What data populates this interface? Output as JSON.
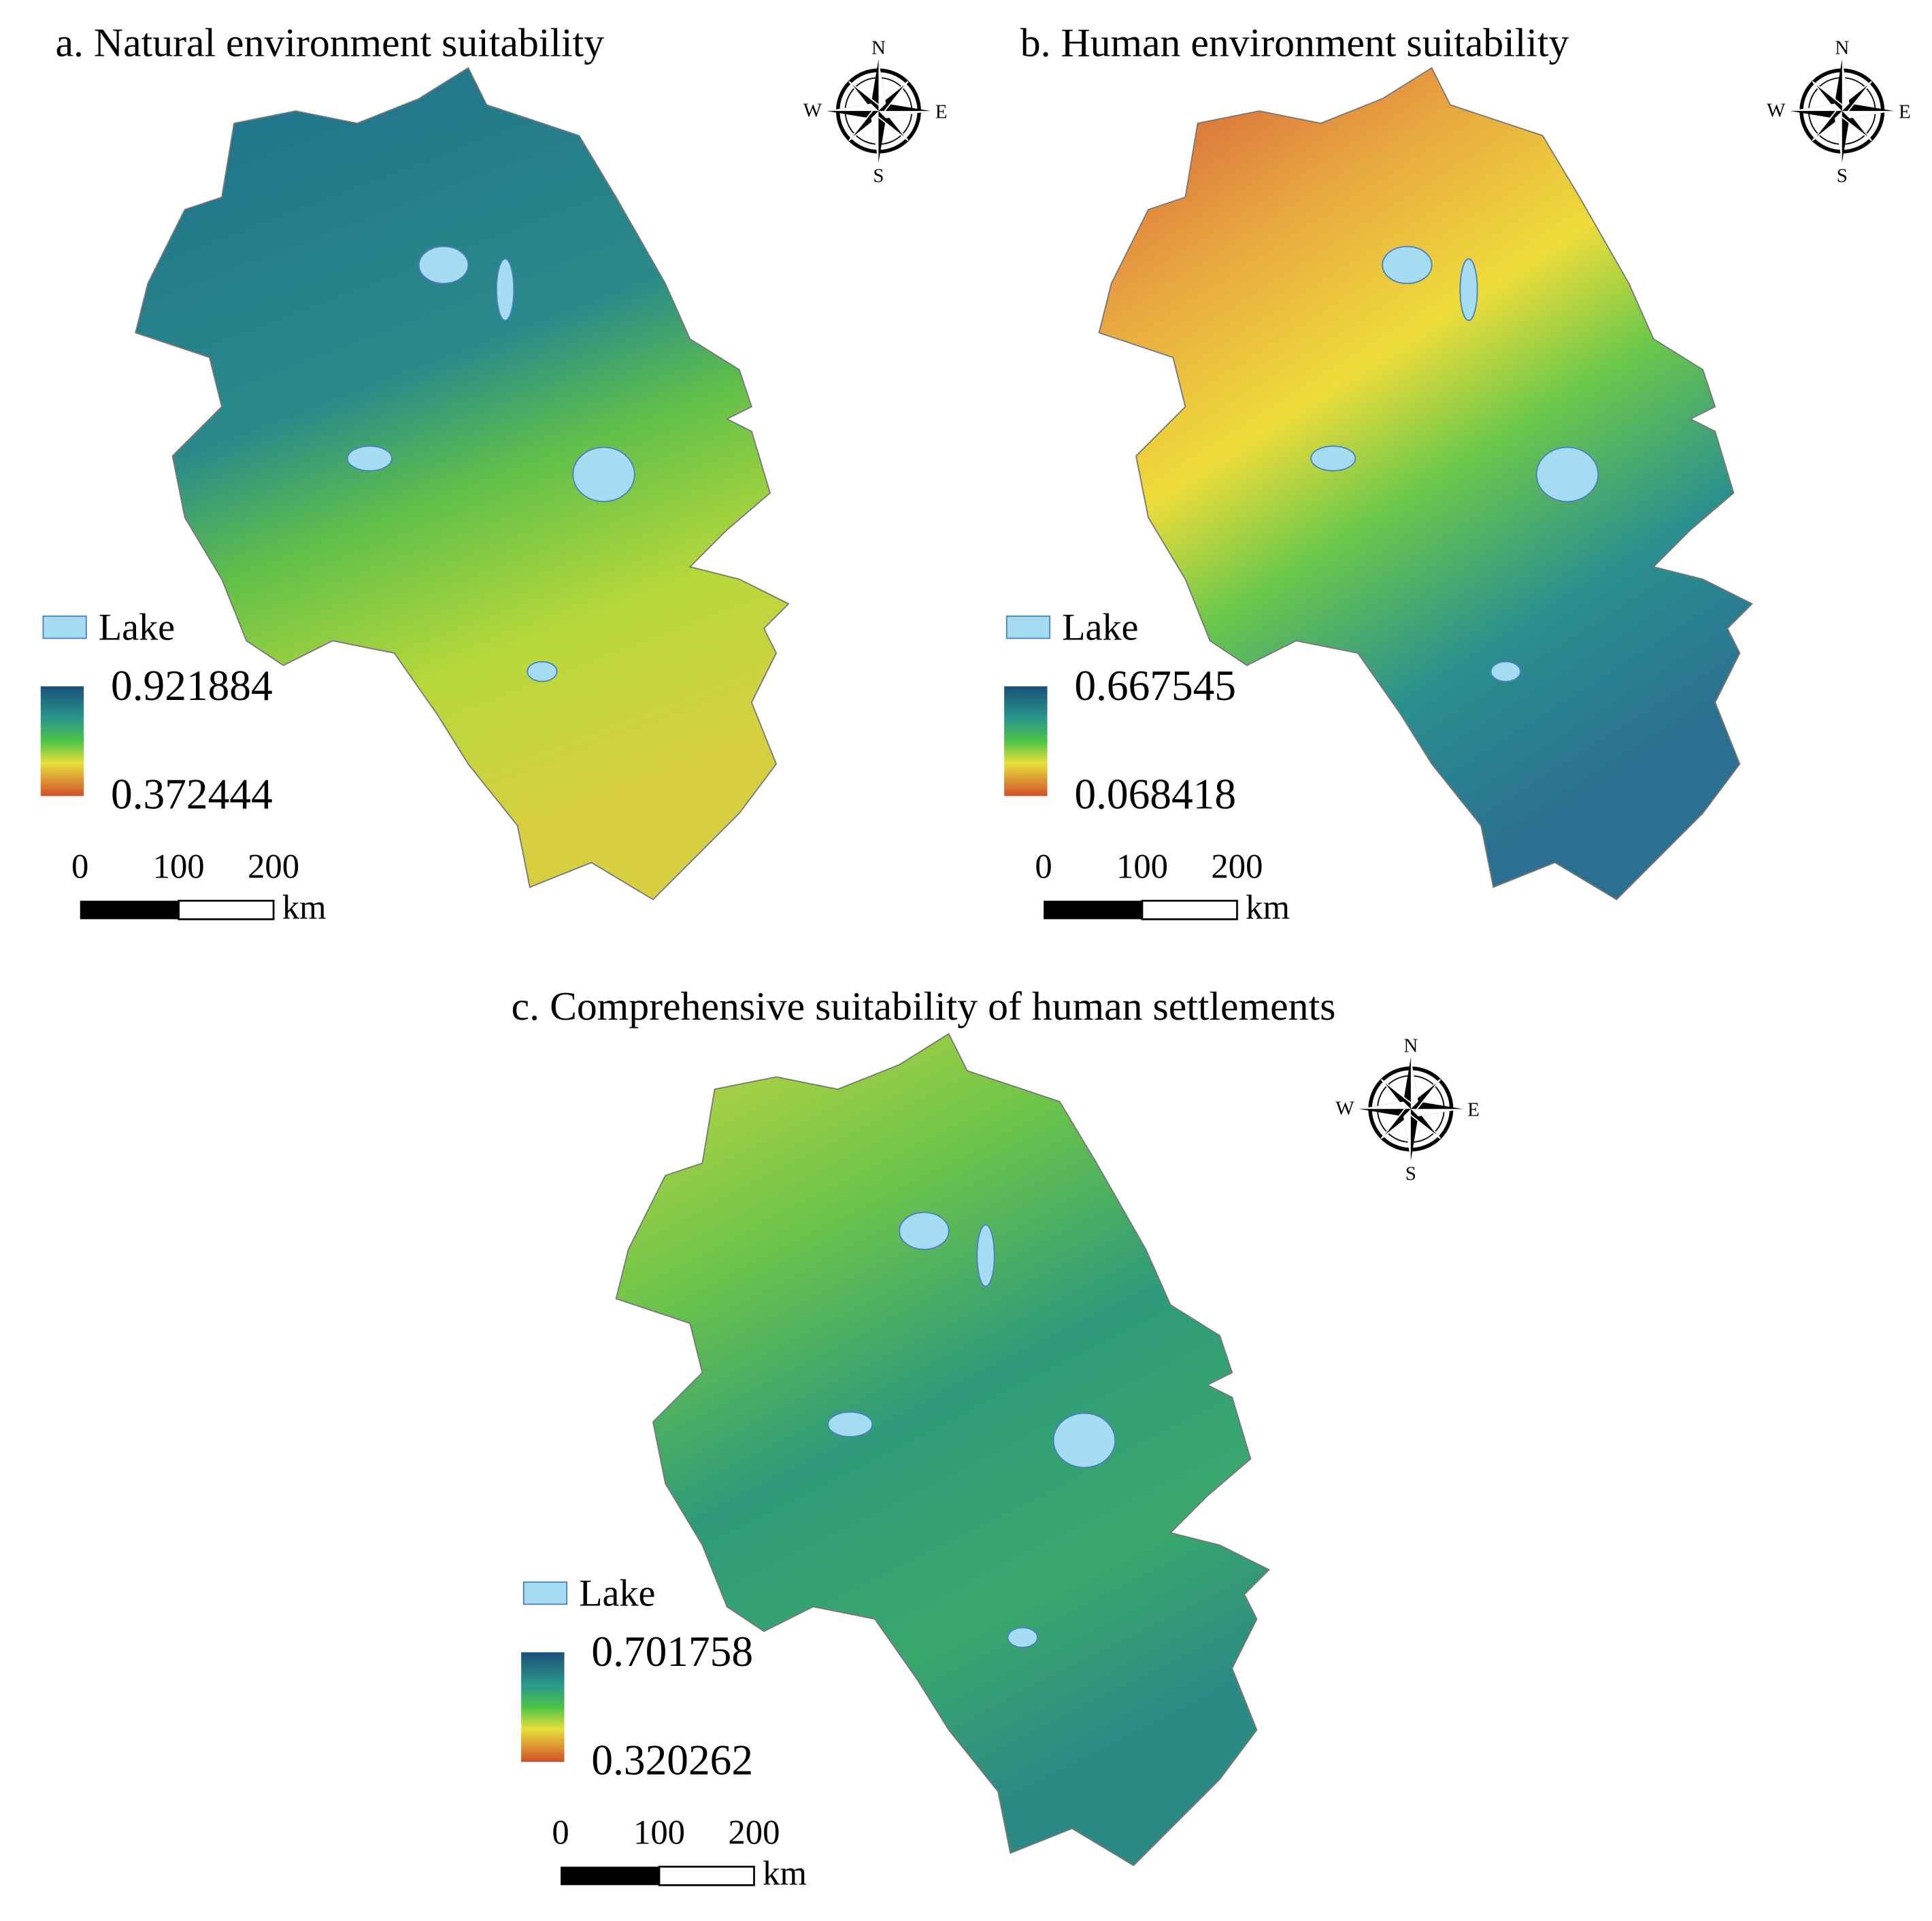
{
  "panels": [
    {
      "title": "a. Natural environment suitability",
      "legend": {
        "lake": "Lake",
        "max": 0.921884,
        "min": 0.372444
      },
      "scale": {
        "ticks": [
          0,
          100,
          200
        ],
        "unit": "km"
      },
      "compass": {
        "n": "N",
        "s": "S",
        "w": "W",
        "e": "E"
      }
    },
    {
      "title": "b. Human environment suitability",
      "legend": {
        "lake": "Lake",
        "max": 0.667545,
        "min": 0.068418
      },
      "scale": {
        "ticks": [
          0,
          100,
          200
        ],
        "unit": "km"
      },
      "compass": {
        "n": "N",
        "s": "S",
        "w": "W",
        "e": "E"
      }
    },
    {
      "title": "c. Comprehensive suitability of human settlements",
      "legend": {
        "lake": "Lake",
        "max": 0.701758,
        "min": 0.320262
      },
      "scale": {
        "ticks": [
          0,
          100,
          200
        ],
        "unit": "km"
      },
      "compass": {
        "n": "N",
        "s": "S",
        "w": "W",
        "e": "E"
      }
    }
  ]
}
